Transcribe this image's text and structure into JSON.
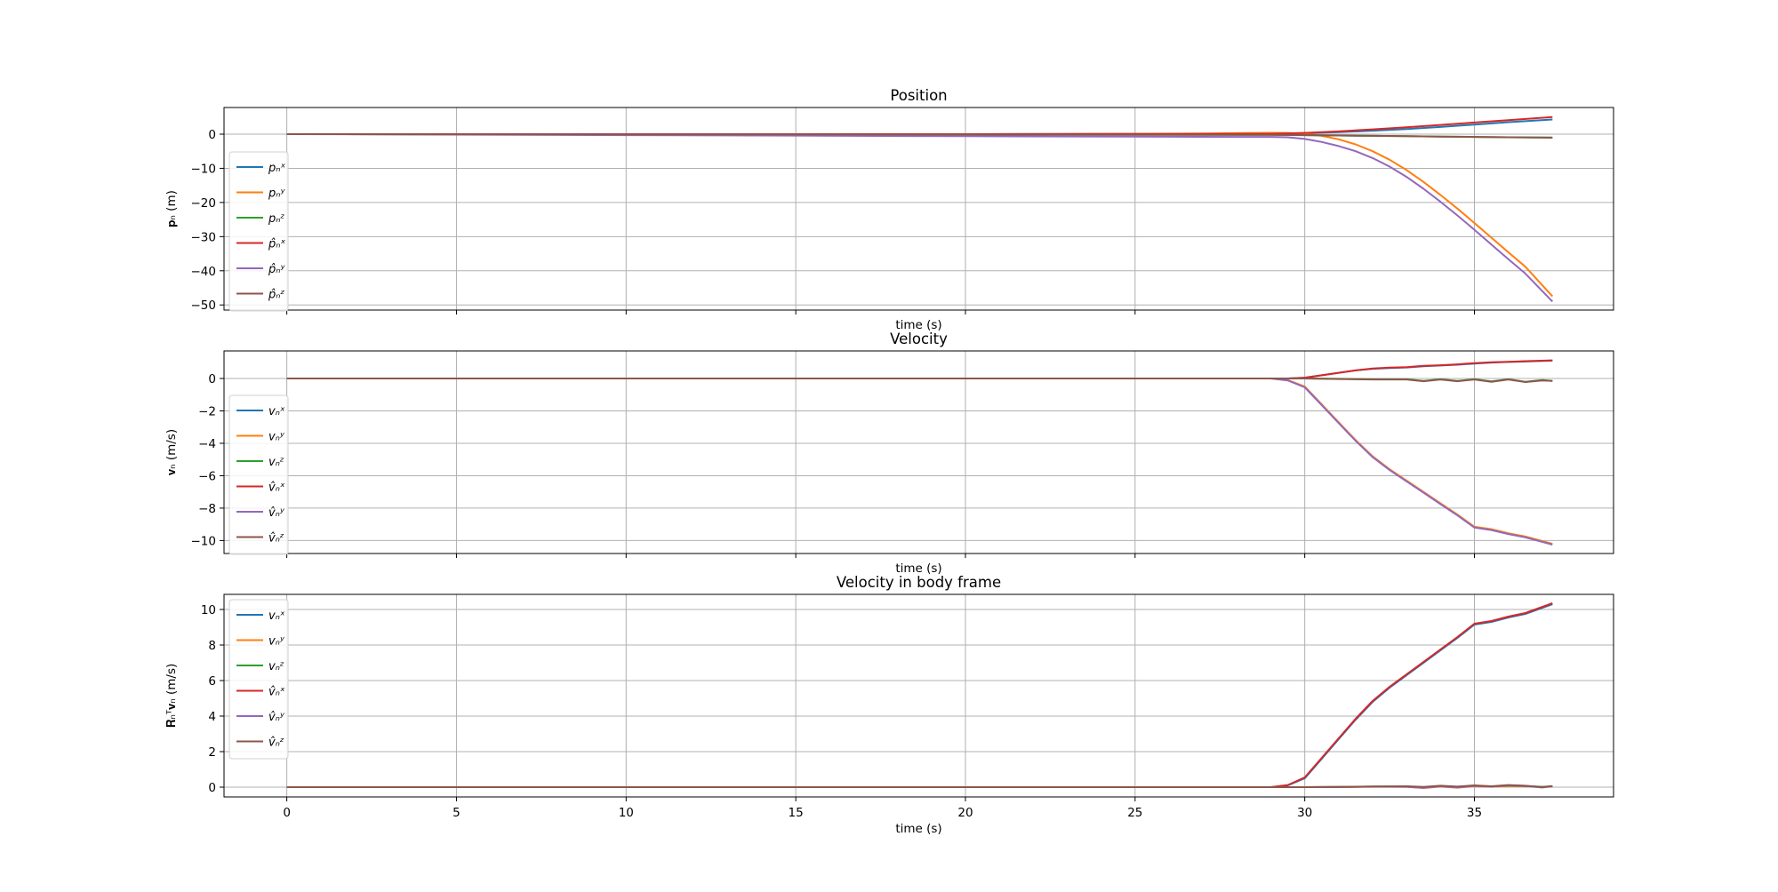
{
  "chart_data": [
    {
      "type": "line",
      "title": "Position",
      "xlabel": "time (s)",
      "ylabel": "𝐩ₙ (m)",
      "xlim": [
        -1.85,
        39.1
      ],
      "ylim": [
        -51.5,
        7.8
      ],
      "xticks": [
        0,
        5,
        10,
        15,
        20,
        25,
        30,
        35
      ],
      "xtick_labels_visible": false,
      "yticks": [
        0,
        -10,
        -20,
        -30,
        -40,
        -50
      ],
      "grid": true,
      "legend_position": "left",
      "series": [
        {
          "name": "pₙˣ",
          "color": "#1f77b4",
          "x": [
            0,
            10,
            20,
            29,
            30,
            31,
            32,
            33,
            34,
            35,
            36,
            37.3
          ],
          "y": [
            0,
            0,
            0,
            0.1,
            0.3,
            0.6,
            1,
            1.5,
            2.1,
            2.8,
            3.5,
            4.3
          ]
        },
        {
          "name": "pₙʸ",
          "color": "#ff7f0e",
          "x": [
            0,
            10,
            20,
            27,
            29,
            29.5,
            30,
            30.5,
            31,
            31.5,
            32,
            32.5,
            33,
            33.5,
            34,
            34.5,
            35,
            35.5,
            36,
            36.5,
            37.3
          ],
          "y": [
            0,
            -0.1,
            -0.1,
            0.2,
            0.4,
            0.35,
            0.1,
            -0.5,
            -1.5,
            -3,
            -5,
            -7.5,
            -10.5,
            -14,
            -17.8,
            -21.8,
            -26,
            -30.3,
            -34.6,
            -38.8,
            -47.5
          ]
        },
        {
          "name": "pₙᶻ",
          "color": "#2ca02c",
          "x": [
            0,
            10,
            20,
            29,
            30,
            31,
            32,
            33,
            34,
            35,
            36,
            37.3
          ],
          "y": [
            0,
            -0.05,
            -0.1,
            -0.2,
            -0.3,
            -0.4,
            -0.5,
            -0.6,
            -0.7,
            -0.8,
            -0.9,
            -1
          ]
        },
        {
          "name": "p̂ₙˣ",
          "color": "#d62728",
          "x": [
            0,
            10,
            20,
            29,
            30,
            31,
            32,
            33,
            34,
            35,
            36,
            37.3
          ],
          "y": [
            0,
            0,
            0,
            0.1,
            0.35,
            0.8,
            1.4,
            2,
            2.7,
            3.4,
            4.1,
            5
          ]
        },
        {
          "name": "p̂ₙʸ",
          "color": "#9467bd",
          "x": [
            0,
            10,
            20,
            28,
            29,
            29.5,
            30,
            30.5,
            31,
            31.5,
            32,
            32.5,
            33,
            33.5,
            34,
            34.5,
            35,
            35.5,
            36,
            36.5,
            37.3
          ],
          "y": [
            0,
            -0.3,
            -0.6,
            -0.8,
            -0.8,
            -0.9,
            -1.4,
            -2.3,
            -3.5,
            -5,
            -7,
            -9.5,
            -12.5,
            -16,
            -19.8,
            -23.8,
            -28,
            -32.3,
            -36.6,
            -40.8,
            -49
          ]
        },
        {
          "name": "p̂ₙᶻ",
          "color": "#8c564b",
          "x": [
            0,
            10,
            20,
            29,
            30,
            31,
            32,
            33,
            34,
            35,
            36,
            37.3
          ],
          "y": [
            0,
            -0.05,
            -0.1,
            -0.2,
            -0.3,
            -0.4,
            -0.5,
            -0.6,
            -0.7,
            -0.8,
            -0.9,
            -1.05
          ]
        }
      ]
    },
    {
      "type": "line",
      "title": "Velocity",
      "xlabel": "time (s)",
      "ylabel": "𝐯ₙ (m/s)",
      "xlim": [
        -1.85,
        39.1
      ],
      "ylim": [
        -10.8,
        1.7
      ],
      "xticks": [
        0,
        5,
        10,
        15,
        20,
        25,
        30,
        35
      ],
      "xtick_labels_visible": false,
      "yticks": [
        0,
        -2,
        -4,
        -6,
        -8,
        -10
      ],
      "grid": true,
      "legend_position": "left",
      "series": [
        {
          "name": "vₙˣ",
          "color": "#1f77b4",
          "x": [
            0,
            29.5,
            30,
            30.5,
            31,
            31.5,
            32,
            32.5,
            33,
            33.5,
            34,
            34.5,
            35,
            35.5,
            36,
            36.5,
            37.3
          ],
          "y": [
            0,
            0,
            0.05,
            0.2,
            0.35,
            0.5,
            0.6,
            0.65,
            0.68,
            0.75,
            0.8,
            0.85,
            0.92,
            0.98,
            1.02,
            1.05,
            1.1
          ]
        },
        {
          "name": "vₙʸ",
          "color": "#ff7f0e",
          "x": [
            0,
            29,
            29.5,
            30,
            30.5,
            31,
            31.5,
            32,
            32.5,
            33,
            33.5,
            34,
            34.5,
            35,
            35.5,
            36,
            36.5,
            37.3
          ],
          "y": [
            0,
            0,
            -0.1,
            -0.5,
            -1.6,
            -2.7,
            -3.8,
            -4.8,
            -5.6,
            -6.3,
            -7,
            -7.7,
            -8.4,
            -9.15,
            -9.3,
            -9.55,
            -9.75,
            -10.2
          ]
        },
        {
          "name": "vₙᶻ",
          "color": "#2ca02c",
          "x": [
            0,
            30,
            31,
            32,
            33,
            33.5,
            34,
            34.5,
            35,
            35.5,
            36,
            36.5,
            37,
            37.3
          ],
          "y": [
            0,
            0,
            -0.02,
            -0.05,
            -0.05,
            -0.15,
            -0.05,
            -0.15,
            -0.05,
            -0.18,
            -0.05,
            -0.2,
            -0.1,
            -0.15
          ]
        },
        {
          "name": "v̂ₙˣ",
          "color": "#d62728",
          "x": [
            0,
            29.5,
            30,
            30.5,
            31,
            31.5,
            32,
            32.5,
            33,
            33.5,
            34,
            34.5,
            35,
            35.5,
            36,
            36.5,
            37.3
          ],
          "y": [
            0,
            0,
            0.05,
            0.2,
            0.35,
            0.5,
            0.62,
            0.67,
            0.7,
            0.78,
            0.82,
            0.87,
            0.95,
            1.0,
            1.03,
            1.07,
            1.12
          ]
        },
        {
          "name": "v̂ₙʸ",
          "color": "#9467bd",
          "x": [
            0,
            29,
            29.5,
            30,
            30.5,
            31,
            31.5,
            32,
            32.5,
            33,
            33.5,
            34,
            34.5,
            35,
            35.5,
            36,
            36.5,
            37.3
          ],
          "y": [
            0,
            0,
            -0.12,
            -0.55,
            -1.65,
            -2.75,
            -3.85,
            -4.85,
            -5.65,
            -6.35,
            -7.05,
            -7.75,
            -8.45,
            -9.2,
            -9.35,
            -9.6,
            -9.8,
            -10.25
          ]
        },
        {
          "name": "v̂ₙᶻ",
          "color": "#8c564b",
          "x": [
            0,
            30,
            31,
            32,
            33,
            33.5,
            34,
            34.5,
            35,
            35.5,
            36,
            36.5,
            37,
            37.3
          ],
          "y": [
            0,
            0,
            -0.03,
            -0.06,
            -0.06,
            -0.17,
            -0.06,
            -0.17,
            -0.06,
            -0.2,
            -0.06,
            -0.22,
            -0.12,
            -0.15
          ]
        }
      ]
    },
    {
      "type": "line",
      "title": "Velocity in body frame",
      "xlabel": "time (s)",
      "ylabel": "𝐑ₙᵀ𝐯ₙ (m/s)",
      "xlim": [
        -1.85,
        39.1
      ],
      "ylim": [
        -0.55,
        10.85
      ],
      "xticks": [
        0,
        5,
        10,
        15,
        20,
        25,
        30,
        35
      ],
      "xtick_labels_visible": true,
      "yticks": [
        0,
        2,
        4,
        6,
        8,
        10
      ],
      "grid": true,
      "legend_position": "upper left",
      "series": [
        {
          "name": "vₙˣ",
          "color": "#1f77b4",
          "x": [
            0,
            29,
            29.5,
            30,
            30.5,
            31,
            31.5,
            32,
            32.5,
            33,
            33.5,
            34,
            34.5,
            35,
            35.5,
            36,
            36.5,
            37.3
          ],
          "y": [
            0,
            0,
            0.1,
            0.5,
            1.6,
            2.7,
            3.8,
            4.8,
            5.6,
            6.3,
            7,
            7.7,
            8.4,
            9.15,
            9.3,
            9.55,
            9.75,
            10.3
          ]
        },
        {
          "name": "vₙʸ",
          "color": "#ff7f0e",
          "x": [
            0,
            30,
            31,
            32,
            33,
            33.5,
            34,
            34.5,
            35,
            35.5,
            36,
            36.5,
            37,
            37.3
          ],
          "y": [
            0,
            0,
            0,
            0.02,
            0.02,
            -0.05,
            0.03,
            -0.03,
            0.05,
            0.02,
            0.06,
            0.05,
            0,
            0.04
          ]
        },
        {
          "name": "vₙᶻ",
          "color": "#2ca02c",
          "x": [
            0,
            30,
            31,
            32,
            33,
            33.5,
            34,
            34.5,
            35,
            35.5,
            36,
            36.5,
            37,
            37.3
          ],
          "y": [
            0,
            0,
            0.01,
            0.03,
            0.04,
            0,
            0.06,
            0.02,
            0.08,
            0.04,
            0.1,
            0.06,
            0.02,
            0.05
          ]
        },
        {
          "name": "v̂ₙˣ",
          "color": "#d62728",
          "x": [
            0,
            29,
            29.5,
            30,
            30.5,
            31,
            31.5,
            32,
            32.5,
            33,
            33.5,
            34,
            34.5,
            35,
            35.5,
            36,
            36.5,
            37.3
          ],
          "y": [
            0,
            0,
            0.12,
            0.55,
            1.65,
            2.75,
            3.85,
            4.85,
            5.65,
            6.35,
            7.05,
            7.75,
            8.45,
            9.2,
            9.35,
            9.6,
            9.8,
            10.35
          ]
        },
        {
          "name": "v̂ₙʸ",
          "color": "#9467bd",
          "x": [
            0,
            30,
            31,
            32,
            33,
            33.5,
            34,
            34.5,
            35,
            35.5,
            36,
            36.5,
            37,
            37.3
          ],
          "y": [
            0,
            0,
            0.01,
            0.03,
            0.02,
            -0.04,
            0.05,
            -0.02,
            0.07,
            0.03,
            0.1,
            0.06,
            -0.02,
            0.05
          ]
        },
        {
          "name": "v̂ₙᶻ",
          "color": "#8c564b",
          "x": [
            0,
            30,
            31,
            32,
            33,
            33.5,
            34,
            34.5,
            35,
            35.5,
            36,
            36.5,
            37,
            37.3
          ],
          "y": [
            0,
            0,
            0.01,
            0.04,
            0.05,
            0.01,
            0.08,
            0.03,
            0.1,
            0.05,
            0.12,
            0.08,
            0,
            0.06
          ]
        }
      ]
    }
  ]
}
